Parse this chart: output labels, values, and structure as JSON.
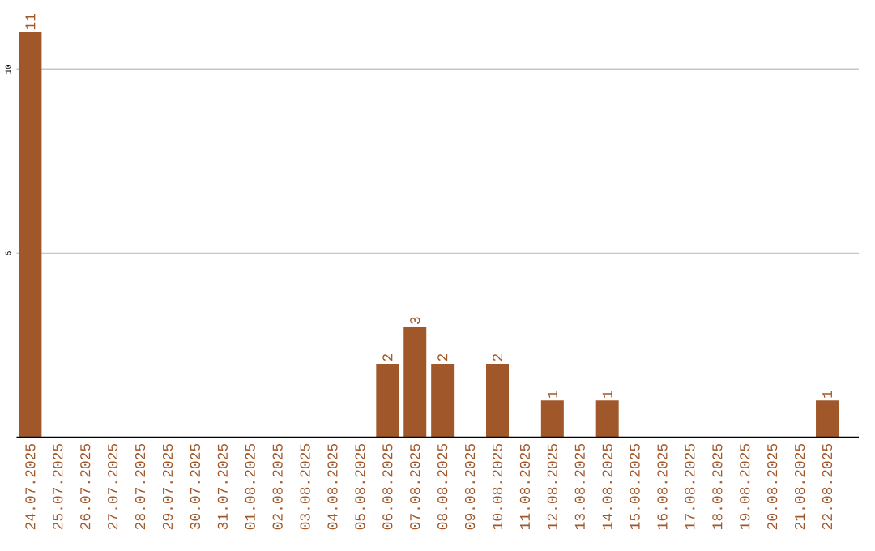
{
  "chart_data": {
    "type": "bar",
    "categories": [
      "24.07.2025",
      "25.07.2025",
      "26.07.2025",
      "27.07.2025",
      "28.07.2025",
      "29.07.2025",
      "30.07.2025",
      "31.07.2025",
      "01.08.2025",
      "02.08.2025",
      "03.08.2025",
      "04.08.2025",
      "05.08.2025",
      "06.08.2025",
      "07.08.2025",
      "08.08.2025",
      "09.08.2025",
      "10.08.2025",
      "11.08.2025",
      "12.08.2025",
      "13.08.2025",
      "14.08.2025",
      "15.08.2025",
      "16.08.2025",
      "17.08.2025",
      "18.08.2025",
      "19.08.2025",
      "20.08.2025",
      "21.08.2025",
      "22.08.2025"
    ],
    "values": [
      11,
      0,
      0,
      0,
      0,
      0,
      0,
      0,
      0,
      0,
      0,
      0,
      0,
      2,
      3,
      2,
      0,
      2,
      0,
      1,
      0,
      1,
      0,
      0,
      0,
      0,
      0,
      0,
      0,
      1
    ],
    "value_labels": [
      "11",
      null,
      null,
      null,
      null,
      null,
      null,
      null,
      null,
      null,
      null,
      null,
      null,
      "2",
      "3",
      "2",
      null,
      "2",
      null,
      "1",
      null,
      "1",
      null,
      null,
      null,
      null,
      null,
      null,
      null,
      "1"
    ],
    "color": "#a0572a",
    "ylim": [
      0,
      11
    ],
    "yticks": [
      5,
      10
    ],
    "grid": "y"
  }
}
